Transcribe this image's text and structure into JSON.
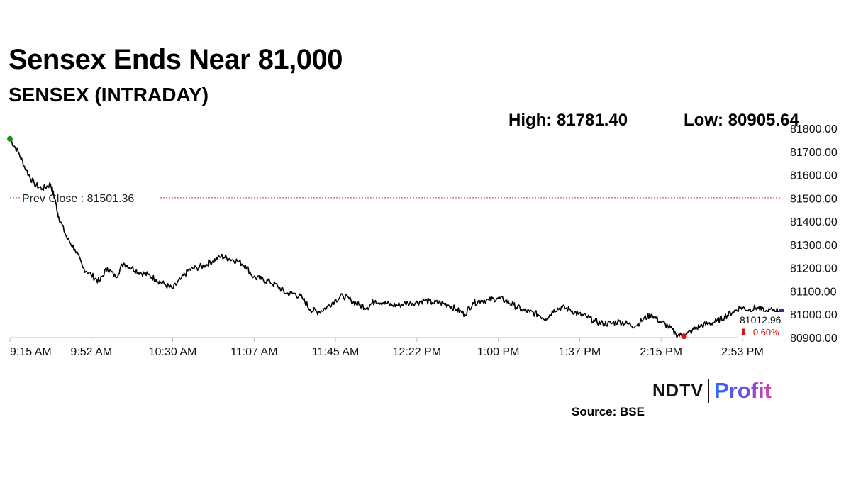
{
  "header": {
    "title": "Sensex Ends Near 81,000",
    "subtitle": "SENSEX (INTRADAY)",
    "high_label": "High: 81781.40",
    "low_label": "Low: 80905.64"
  },
  "chart_data": {
    "type": "line",
    "title": "Sensex Ends Near 81,000",
    "subtitle": "SENSEX (INTRADAY)",
    "xlabel": "",
    "ylabel": "",
    "x_ticks": [
      "9:15 AM",
      "9:52 AM",
      "10:30 AM",
      "11:07 AM",
      "11:45 AM",
      "12:22 PM",
      "1:00 PM",
      "1:37 PM",
      "2:15 PM",
      "2:53 PM"
    ],
    "y_ticks": [
      "81800.00",
      "81700.00",
      "81600.00",
      "81500.00",
      "81400.00",
      "81300.00",
      "81200.00",
      "81100.00",
      "81000.00",
      "80900.00"
    ],
    "ylim": [
      80900,
      81800
    ],
    "grid": false,
    "series": [
      {
        "values": [
          [
            0,
            81755
          ],
          [
            2,
            81700
          ],
          [
            4,
            81620
          ],
          [
            6,
            81560
          ],
          [
            8,
            81540
          ],
          [
            10,
            81560
          ],
          [
            11,
            81500
          ],
          [
            12,
            81420
          ],
          [
            14,
            81330
          ],
          [
            16,
            81280
          ],
          [
            18,
            81200
          ],
          [
            20,
            81170
          ],
          [
            22,
            81140
          ],
          [
            24,
            81200
          ],
          [
            26,
            81160
          ],
          [
            28,
            81220
          ],
          [
            30,
            81200
          ],
          [
            32,
            81180
          ],
          [
            34,
            81170
          ],
          [
            36,
            81150
          ],
          [
            38,
            81130
          ],
          [
            40,
            81110
          ],
          [
            42,
            81150
          ],
          [
            44,
            81190
          ],
          [
            46,
            81200
          ],
          [
            48,
            81210
          ],
          [
            50,
            81230
          ],
          [
            52,
            81250
          ],
          [
            54,
            81240
          ],
          [
            56,
            81230
          ],
          [
            58,
            81210
          ],
          [
            60,
            81160
          ],
          [
            62,
            81150
          ],
          [
            64,
            81140
          ],
          [
            66,
            81120
          ],
          [
            68,
            81090
          ],
          [
            70,
            81090
          ],
          [
            72,
            81070
          ],
          [
            74,
            81020
          ],
          [
            76,
            81010
          ],
          [
            78,
            81030
          ],
          [
            80,
            81060
          ],
          [
            82,
            81080
          ],
          [
            84,
            81060
          ],
          [
            86,
            81040
          ],
          [
            88,
            81030
          ],
          [
            90,
            81060
          ],
          [
            92,
            81050
          ],
          [
            94,
            81040
          ],
          [
            96,
            81040
          ],
          [
            98,
            81050
          ],
          [
            100,
            81050
          ],
          [
            102,
            81060
          ],
          [
            104,
            81050
          ],
          [
            106,
            81050
          ],
          [
            108,
            81040
          ],
          [
            110,
            81020
          ],
          [
            112,
            81000
          ],
          [
            114,
            81050
          ],
          [
            116,
            81060
          ],
          [
            118,
            81060
          ],
          [
            120,
            81070
          ],
          [
            122,
            81060
          ],
          [
            124,
            81040
          ],
          [
            126,
            81020
          ],
          [
            128,
            81010
          ],
          [
            130,
            81000
          ],
          [
            132,
            80980
          ],
          [
            134,
            81020
          ],
          [
            136,
            81030
          ],
          [
            138,
            81020
          ],
          [
            140,
            81000
          ],
          [
            142,
            80990
          ],
          [
            144,
            80970
          ],
          [
            146,
            80960
          ],
          [
            148,
            80960
          ],
          [
            150,
            80970
          ],
          [
            152,
            80960
          ],
          [
            154,
            80950
          ],
          [
            156,
            80980
          ],
          [
            158,
            81000
          ],
          [
            160,
            80970
          ],
          [
            162,
            80950
          ],
          [
            164,
            80915
          ],
          [
            166,
            80905.64
          ],
          [
            168,
            80930
          ],
          [
            170,
            80950
          ],
          [
            172,
            80960
          ],
          [
            174,
            80970
          ],
          [
            176,
            80990
          ],
          [
            178,
            81010
          ],
          [
            180,
            81030
          ],
          [
            182,
            81020
          ],
          [
            184,
            81030
          ],
          [
            186,
            81010
          ],
          [
            188,
            81020
          ],
          [
            190,
            81012.96
          ]
        ]
      }
    ],
    "prev_close": {
      "label": "Prev Close : 81501.36",
      "value": 81501.36
    },
    "last": {
      "value": 81012.96,
      "label": "81012.96",
      "change_label": "⬇ -0.60%"
    },
    "markers": {
      "open_color": "#1a8f1a",
      "low_color": "#e01010",
      "last_color": "#1a2fd0"
    },
    "colors": {
      "line": "#000000",
      "prev_close": "#d03030",
      "change": "#d01010"
    }
  },
  "footer": {
    "logo_left": "NDTV",
    "logo_right": "Profit",
    "source": "Source: BSE"
  }
}
